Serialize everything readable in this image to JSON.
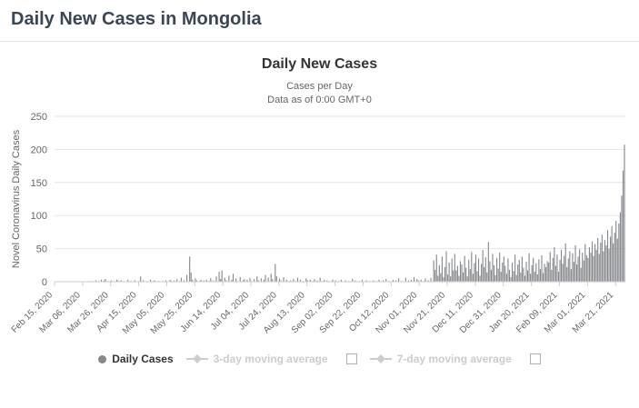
{
  "page": {
    "title": "Daily New Cases in Mongolia"
  },
  "chart": {
    "title": "Daily New Cases",
    "subtitle1": "Cases per Day",
    "subtitle2": "Data as of 0:00 GMT+0",
    "y_axis_title": "Novel Coronavirus Daily Cases"
  },
  "legend": {
    "daily_cases": "Daily Cases",
    "ma3": "3-day moving average",
    "ma7": "7-day moving average"
  },
  "colors": {
    "bar": "#84878b",
    "title_text": "#3a4655",
    "axis_text": "#666666",
    "gridline": "#e6e6e6",
    "axis_line": "#cccccc",
    "muted_legend": "#cccccc"
  },
  "chart_data": {
    "type": "bar",
    "title": "Daily New Cases",
    "subtitle": [
      "Cases per Day",
      "Data as of 0:00 GMT+0"
    ],
    "xlabel": "",
    "ylabel": "Novel Coronavirus Daily Cases",
    "ylim": [
      0,
      250
    ],
    "y_ticks": [
      0,
      50,
      100,
      150,
      200,
      250
    ],
    "grid": true,
    "legend_position": "bottom",
    "legend_entries": [
      "Daily Cases",
      "3-day moving average",
      "7-day moving average"
    ],
    "x_start_date": "2020-02-15",
    "x_interval_days": 1,
    "x_tick_every_days": 20,
    "x_tick_labels": [
      "Feb 15, 2020",
      "Mar 06, 2020",
      "Mar 26, 2020",
      "Apr 15, 2020",
      "May 05, 2020",
      "May 25, 2020",
      "Jun 14, 2020",
      "Jul 04, 2020",
      "Jul 24, 2020",
      "Aug 13, 2020",
      "Sep 02, 2020",
      "Sep 22, 2020",
      "Oct 12, 2020",
      "Nov 01, 2020",
      "Nov 21, 2020",
      "Dec 11, 2020",
      "Dec 31, 2020",
      "Jan 20, 2021",
      "Feb 09, 2021",
      "Mar 01, 2021",
      "Mar 21, 2021"
    ],
    "series": [
      {
        "name": "Daily Cases",
        "color": "#84878b",
        "values": [
          0,
          0,
          0,
          0,
          0,
          0,
          0,
          0,
          0,
          0,
          0,
          0,
          0,
          0,
          0,
          0,
          0,
          0,
          0,
          0,
          0,
          0,
          0,
          0,
          1,
          0,
          0,
          1,
          0,
          2,
          0,
          1,
          0,
          3,
          0,
          2,
          4,
          0,
          1,
          0,
          2,
          0,
          1,
          0,
          3,
          2,
          0,
          2,
          0,
          1,
          0,
          0,
          3,
          0,
          1,
          0,
          0,
          2,
          0,
          0,
          1,
          8,
          0,
          2,
          0,
          1,
          0,
          0,
          3,
          0,
          1,
          2,
          0,
          0,
          1,
          0,
          0,
          1,
          0,
          2,
          0,
          0,
          3,
          1,
          0,
          2,
          0,
          4,
          0,
          1,
          6,
          0,
          2,
          0,
          10,
          0,
          38,
          14,
          3,
          0,
          5,
          2,
          0,
          1,
          3,
          0,
          2,
          0,
          3,
          0,
          1,
          5,
          0,
          2,
          0,
          8,
          0,
          15,
          4,
          17,
          0,
          6,
          2,
          0,
          9,
          0,
          3,
          12,
          0,
          5,
          1,
          0,
          7,
          0,
          2,
          4,
          0,
          3,
          0,
          6,
          1,
          0,
          4,
          0,
          8,
          2,
          0,
          5,
          0,
          3,
          10,
          0,
          6,
          0,
          12,
          4,
          0,
          27,
          8,
          0,
          5,
          2,
          0,
          7,
          0,
          3,
          1,
          0,
          2,
          0,
          4,
          0,
          1,
          6,
          0,
          3,
          0,
          1,
          0,
          5,
          2,
          0,
          3,
          0,
          1,
          4,
          0,
          2,
          0,
          6,
          0,
          1,
          3,
          0,
          2,
          0,
          1,
          0,
          3,
          0,
          2,
          0,
          1,
          0,
          3,
          0,
          0,
          2,
          0,
          1,
          0,
          0,
          4,
          0,
          2,
          0,
          0,
          1,
          0,
          3,
          0,
          0,
          2,
          0,
          1,
          0,
          0,
          2,
          0,
          1,
          0,
          3,
          0,
          0,
          2,
          0,
          4,
          0,
          1,
          0,
          0,
          3,
          0,
          2,
          0,
          5,
          0,
          1,
          0,
          0,
          6,
          0,
          2,
          0,
          3,
          0,
          7,
          0,
          4,
          2,
          0,
          3,
          0,
          1,
          5,
          0,
          2,
          0,
          6,
          0,
          32,
          18,
          41,
          9,
          25,
          13,
          38,
          7,
          22,
          46,
          11,
          29,
          8,
          35,
          17,
          42,
          17,
          24,
          9,
          31,
          26,
          14,
          39,
          21,
          8,
          33,
          19,
          45,
          12,
          28,
          41,
          16,
          35,
          9,
          27,
          48,
          22,
          37,
          14,
          60,
          31,
          18,
          42,
          25,
          10,
          36,
          20,
          44,
          15,
          29,
          38,
          24,
          12,
          35,
          18,
          7,
          29,
          16,
          41,
          10,
          26,
          33,
          14,
          38,
          21,
          9,
          30,
          17,
          43,
          12,
          25,
          36,
          15,
          28,
          11,
          34,
          19,
          40,
          13,
          27,
          22,
          31,
          29,
          45,
          18,
          36,
          52,
          24,
          41,
          15,
          33,
          48,
          27,
          39,
          58,
          22,
          35,
          46,
          19,
          43,
          30,
          55,
          26,
          38,
          49,
          21,
          44,
          32,
          57,
          40,
          36,
          52,
          44,
          61,
          39,
          57,
          48,
          66,
          42,
          59,
          71,
          46,
          63,
          55,
          78,
          50,
          68,
          84,
          58,
          74,
          92,
          65,
          88,
          105,
          130,
          168,
          207
        ]
      }
    ]
  }
}
